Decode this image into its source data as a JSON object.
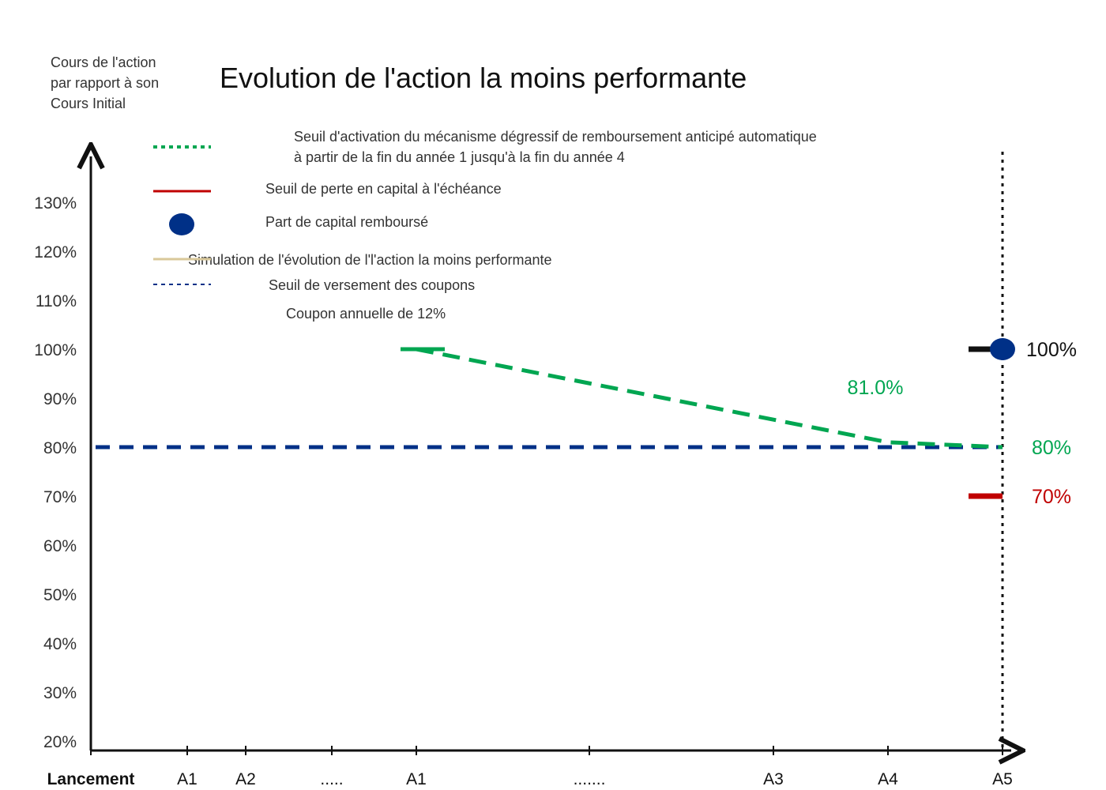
{
  "chart_data": {
    "type": "line",
    "title": "Evolution de l'action la moins performante",
    "ylabel": "Cours de l'action par rapport à son Cours Initial",
    "ylim": [
      20,
      130
    ],
    "y_ticks": [
      "20%",
      "30%",
      "40%",
      "50%",
      "60%",
      "70%",
      "80%",
      "90%",
      "100%",
      "110%",
      "120%",
      "130%"
    ],
    "y_tick_values": [
      20,
      30,
      40,
      50,
      60,
      70,
      80,
      90,
      100,
      110,
      120,
      130
    ],
    "categories": [
      "Lancement",
      "A1",
      "A2",
      ".....",
      "A1",
      ".......",
      "A3",
      "A4",
      "A5"
    ],
    "series": [
      {
        "name": "Seuil d'activation du mécanisme dégressif de remboursement anticipé automatique à partir de la fin du année 1 jusqu'à la fin du année 4",
        "color": "#00a651",
        "style": "dashed",
        "points": [
          {
            "x": "A1",
            "y": 100
          },
          {
            "x": "A4",
            "y": 81
          },
          {
            "x": "A5",
            "y": 80
          }
        ]
      },
      {
        "name": "Seuil de versement des coupons",
        "color": "#003087",
        "style": "dashed",
        "points": [
          {
            "x": "Lancement",
            "y": 80
          },
          {
            "x": "A5",
            "y": 80
          }
        ]
      }
    ],
    "markers": [
      {
        "name": "Part de capital remboursé",
        "x": "A5",
        "y": 100,
        "color": "#003087"
      },
      {
        "name": "Seuil de perte en capital à l'échéance",
        "x": "A5",
        "y": 70,
        "color": "#c00000"
      }
    ],
    "annotations": [
      {
        "text": "81.0%",
        "x": "A4",
        "y": 81,
        "color": "#00a651"
      },
      {
        "text": "100%",
        "x": "A5",
        "y": 100,
        "color": "#111111"
      },
      {
        "text": "80%",
        "x": "A5",
        "y": 80,
        "color": "#00a651"
      },
      {
        "text": "70%",
        "x": "A5",
        "y": 70,
        "color": "#c00000"
      }
    ],
    "legend": {
      "placement": "top-left",
      "items": [
        {
          "label_line1": "Seuil d'activation du mécanisme dégressif de remboursement anticipé automatique",
          "label_line2": " à partir de la fin du année 1 jusqu'à la fin du année 4",
          "symbol": "dotted-line",
          "color": "#00a651"
        },
        {
          "label": "Seuil de perte en capital à l'échéance",
          "symbol": "solid-line",
          "color": "#c00000"
        },
        {
          "label": "Part de capital remboursé",
          "symbol": "circle",
          "color": "#003087"
        },
        {
          "label": "Simulation de l'évolution de l'l'action la moins performante",
          "symbol": "solid-line",
          "color": "#d9c89a"
        },
        {
          "label": "Seuil de versement des coupons",
          "symbol": "dashed-line",
          "color": "#003087"
        },
        {
          "label": "Coupon annuelle de 12%",
          "symbol": "none",
          "color": ""
        }
      ]
    },
    "grid": false
  }
}
